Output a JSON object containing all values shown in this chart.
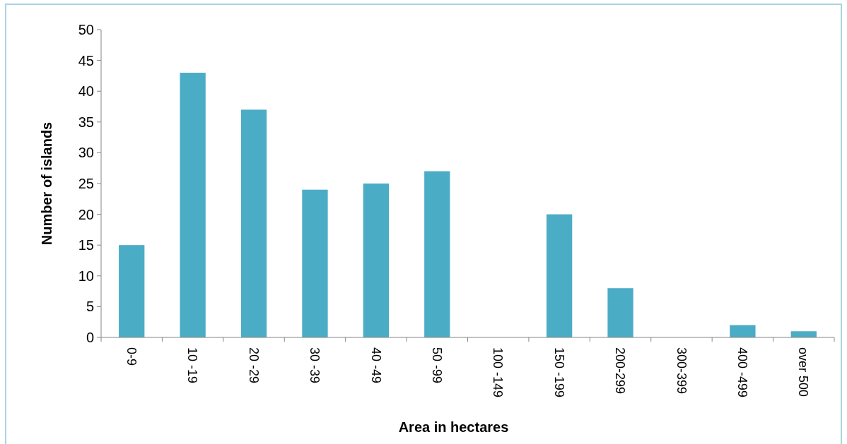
{
  "chart_data": {
    "type": "bar",
    "xlabel": "Area in hectares",
    "ylabel": "Number of islands",
    "categories": [
      "0-9",
      "10 -19",
      "20 -29",
      "30 -39",
      "40 -49",
      "50 -99",
      "100 -149",
      "150 -199",
      "200-299",
      "300-399",
      "400 -499",
      "over 500"
    ],
    "values": [
      15,
      43,
      37,
      24,
      25,
      27,
      0,
      20,
      8,
      0,
      2,
      1
    ],
    "color": "#4bacc6",
    "ylim": [
      0,
      50
    ],
    "yticks": [
      0,
      5,
      10,
      15,
      20,
      25,
      30,
      35,
      40,
      45,
      50
    ],
    "grid": false
  }
}
